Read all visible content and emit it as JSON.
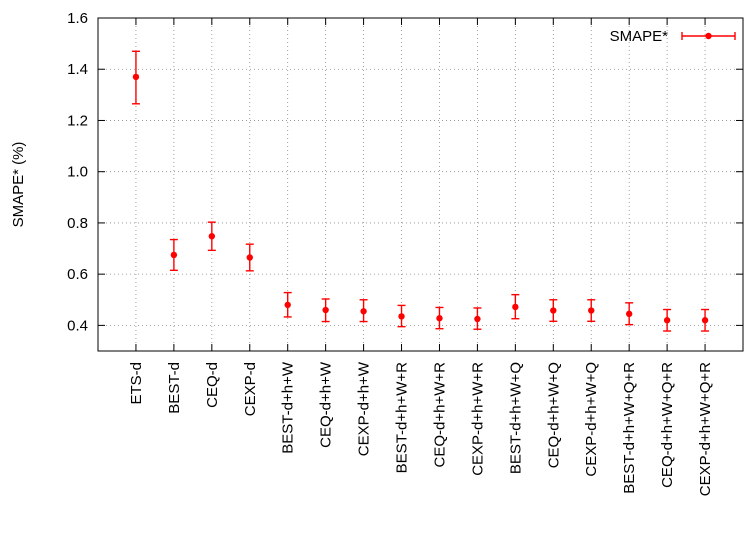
{
  "chart_data": {
    "type": "scatter",
    "title": "",
    "xlabel": "",
    "ylabel": "SMAPE* (%)",
    "ylim": [
      0.3,
      1.6
    ],
    "yticks": [
      "0.4",
      "0.6",
      "0.8",
      "1.0",
      "1.2",
      "1.4",
      "1.6"
    ],
    "grid": true,
    "legend_position": "top-right",
    "categories": [
      "ETS-d",
      "BEST-d",
      "CEQ-d",
      "CEXP-d",
      "BEST-d+h+W",
      "CEQ-d+h+W",
      "CEXP-d+h+W",
      "BEST-d+h+W+R",
      "CEQ-d+h+W+R",
      "CEXP-d+h+W+R",
      "BEST-d+h+W+Q",
      "CEQ-d+h+W+Q",
      "CEXP-d+h+W+Q",
      "BEST-d+h+W+Q+R",
      "CEQ-d+h+W+Q+R",
      "CEXP-d+h+W+Q+R"
    ],
    "series": [
      {
        "name": "SMAPE*",
        "color": "#ff0000",
        "values": [
          1.37,
          0.675,
          0.748,
          0.665,
          0.48,
          0.46,
          0.455,
          0.435,
          0.428,
          0.425,
          0.472,
          0.458,
          0.458,
          0.445,
          0.42,
          0.42
        ],
        "err_low": [
          1.265,
          0.615,
          0.693,
          0.613,
          0.433,
          0.415,
          0.415,
          0.395,
          0.387,
          0.385,
          0.426,
          0.416,
          0.416,
          0.403,
          0.378,
          0.378
        ],
        "err_high": [
          1.47,
          0.735,
          0.803,
          0.717,
          0.528,
          0.503,
          0.5,
          0.478,
          0.47,
          0.468,
          0.52,
          0.5,
          0.5,
          0.488,
          0.462,
          0.462
        ]
      }
    ]
  }
}
